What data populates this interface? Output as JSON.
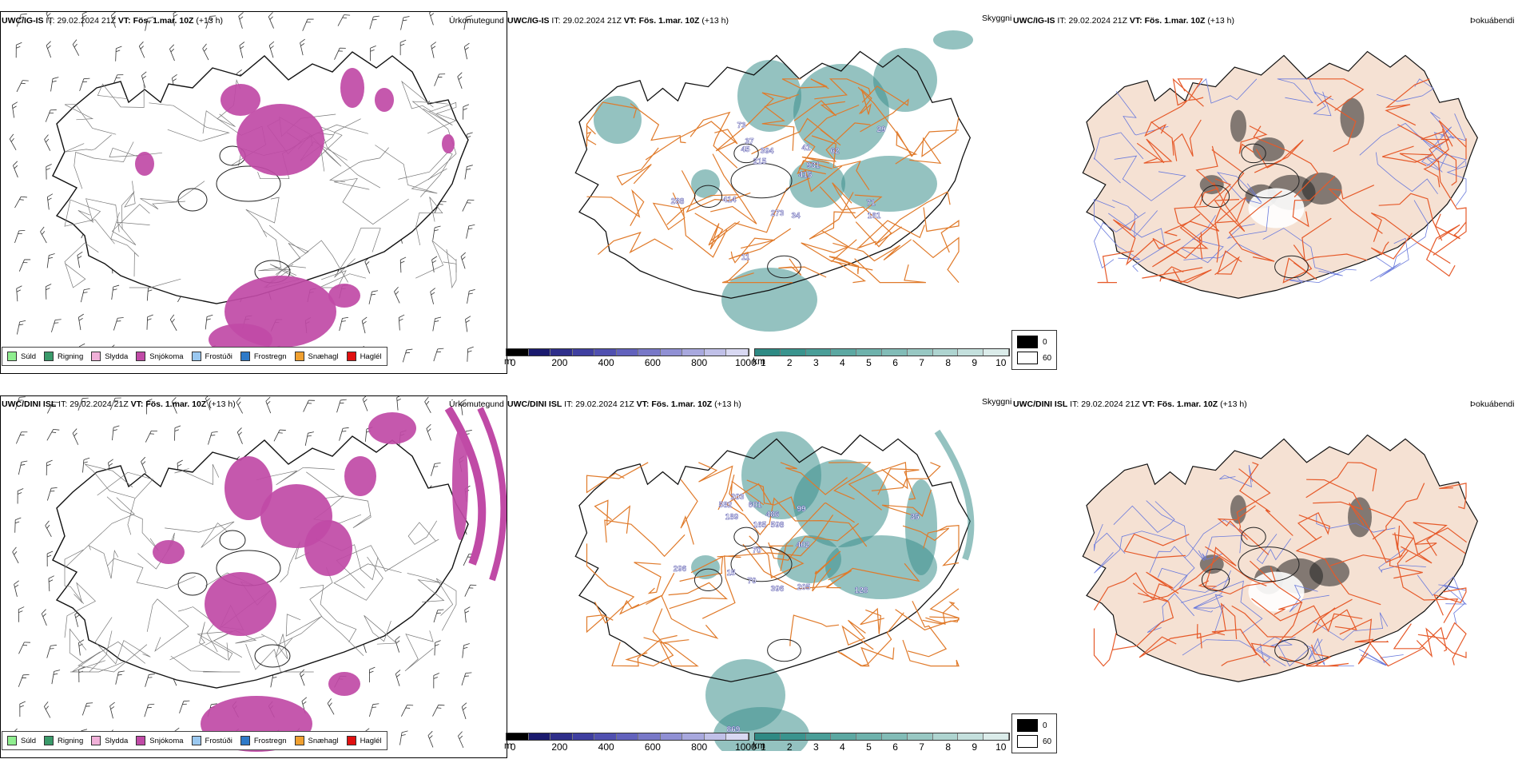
{
  "top_row": {
    "precip": {
      "model": "UWC/IG-IS",
      "it_label": "IT:",
      "it_value": "29.02.2024 21Z",
      "vt_label": "VT:",
      "vt_value": "Fös. 1.mar. 10Z",
      "lead": "(+13 h)",
      "type": "Úrkomutegund"
    },
    "vis": {
      "model": "UWC/IG-IS",
      "it_label": "IT:",
      "it_value": "29.02.2024 21Z",
      "vt_label": "VT:",
      "vt_value": "Fös. 1.mar. 10Z",
      "lead": "(+13 h)",
      "type": "Skyggni",
      "values": [
        "73",
        "37",
        "45",
        "394",
        "215",
        "41",
        "931",
        "62",
        "415",
        "29",
        "288",
        "414",
        "273",
        "34",
        "71",
        "161",
        "11"
      ]
    },
    "fog": {
      "model": "UWC/IG-IS",
      "it_label": "IT:",
      "it_value": "29.02.2024 21Z",
      "vt_label": "VT:",
      "vt_value": "Fös. 1.mar. 10Z",
      "lead": "(+13 h)",
      "type": "Þokuábendi"
    }
  },
  "bottom_row": {
    "precip": {
      "model": "UWC/DINI ISL",
      "it_label": "IT:",
      "it_value": "29.02.2024 21Z",
      "vt_label": "VT:",
      "vt_value": "Fös. 1.mar. 10Z",
      "lead": "(+13 h)",
      "type": "Úrkomutegund"
    },
    "vis": {
      "model": "UWC/DINI ISL",
      "it_label": "IT:",
      "it_value": "29.02.2024 21Z",
      "vt_label": "VT:",
      "vt_value": "Fös. 1.mar. 10Z",
      "lead": "(+13 h)",
      "type": "Skyggni",
      "values": [
        "203",
        "582",
        "601",
        "189",
        "486",
        "165",
        "598",
        "99",
        "402",
        "70",
        "35",
        "296",
        "15",
        "70",
        "396",
        "205",
        "128",
        "869"
      ]
    },
    "fog": {
      "model": "UWC/DINI ISL",
      "it_label": "IT:",
      "it_value": "29.02.2024 21Z",
      "vt_label": "VT:",
      "vt_value": "Fös. 1.mar. 10Z",
      "lead": "(+13 h)",
      "type": "Þokuábendi"
    }
  },
  "precip_legend": [
    {
      "label": "Súld",
      "color": "#90ee90"
    },
    {
      "label": "Rigning",
      "color": "#3a9a6a"
    },
    {
      "label": "Slydda",
      "color": "#f0b0d8"
    },
    {
      "label": "Snjókoma",
      "color": "#c04aa6"
    },
    {
      "label": "Frostúði",
      "color": "#9ac8f0"
    },
    {
      "label": "Frostregn",
      "color": "#2e7ac8"
    },
    {
      "label": "Snæhagl",
      "color": "#f0a030"
    },
    {
      "label": "Haglél",
      "color": "#e01010"
    }
  ],
  "height_bar": {
    "unit": "m",
    "ticks": [
      "0",
      "200",
      "400",
      "600",
      "800",
      "1000"
    ],
    "colors": [
      "#000000",
      "#1a1a6e",
      "#2e2e8a",
      "#3f3fa0",
      "#5050b0",
      "#6262bd",
      "#7878c8",
      "#9090d4",
      "#a8a8de",
      "#c0c0e8",
      "#d8d8f2"
    ]
  },
  "km_bar": {
    "unit": "km",
    "ticks": [
      "1",
      "2",
      "3",
      "4",
      "5",
      "6",
      "7",
      "8",
      "9",
      "10"
    ],
    "colors": [
      "#2e8a84",
      "#3a948e",
      "#4a9e98",
      "#5ca8a2",
      "#6eb2ac",
      "#82bcb7",
      "#98c8c3",
      "#aed4d0",
      "#c4e0dd",
      "#dbecea"
    ]
  },
  "fog_legend": {
    "values": [
      "0",
      "60"
    ],
    "colors": [
      "#000000",
      "#ffffff"
    ]
  },
  "colors": {
    "snow": "#c04aa6",
    "teal": "#3d8f8c",
    "road_orange": "#e07a2a",
    "fog_land": "#f5e1d3",
    "fog_road": "#e65a2a",
    "fog_river": "#6a7adc"
  }
}
